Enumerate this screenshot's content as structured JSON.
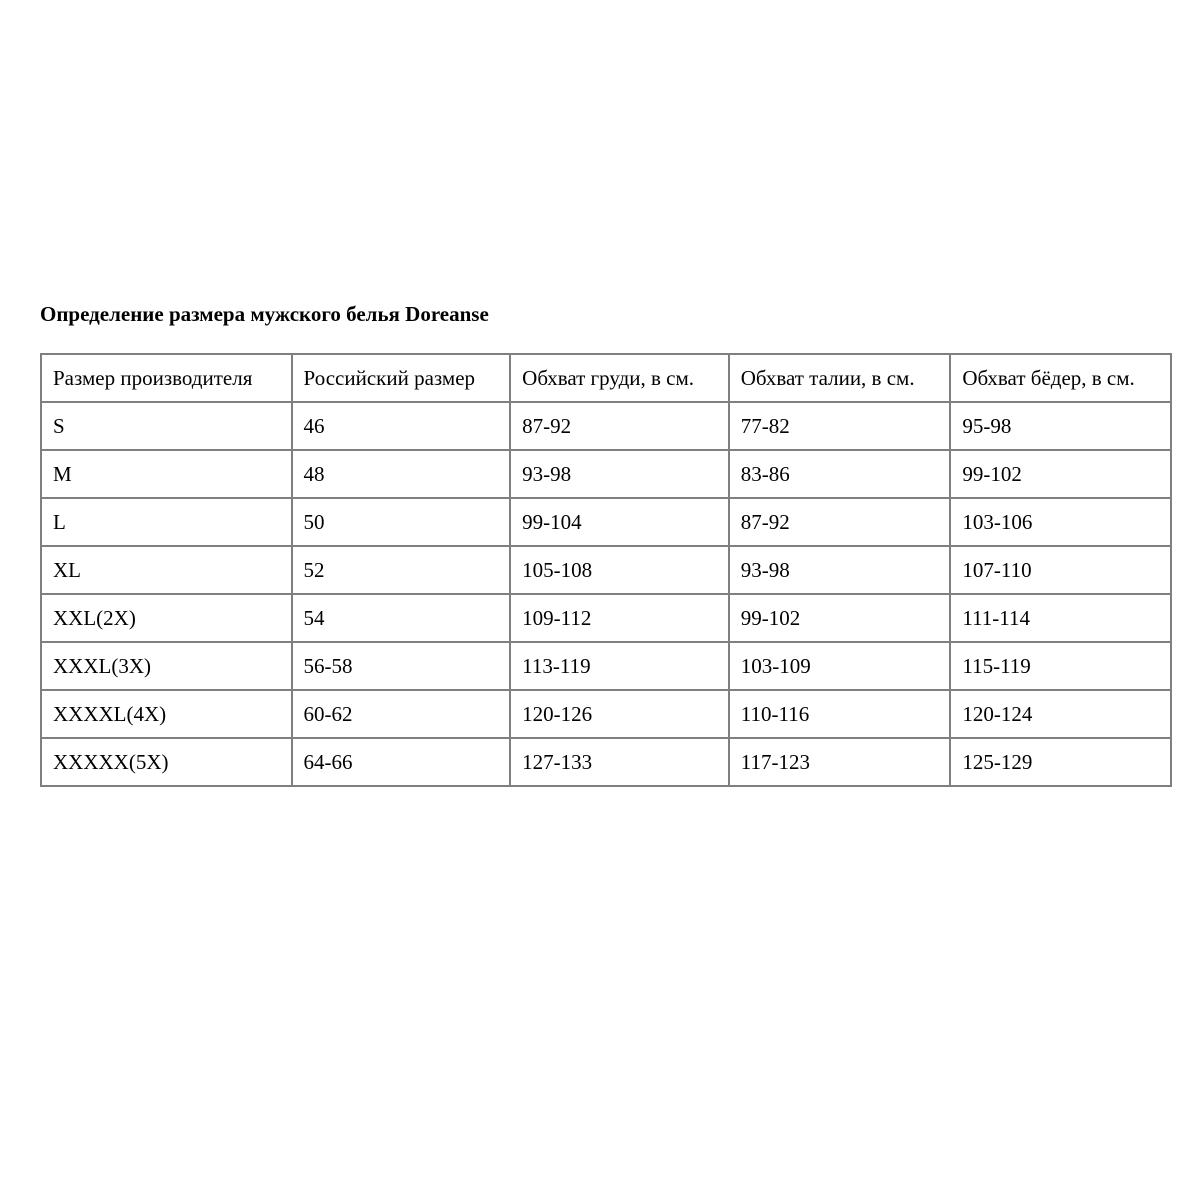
{
  "title": "Определение размера мужского белья Doreanse",
  "table": {
    "headers": [
      "Размер производителя",
      "Российский размер",
      "Обхват груди, в см.",
      "Обхват талии, в см.",
      "Обхват бёдер, в см."
    ],
    "rows": [
      [
        "S",
        "46",
        "87-92",
        "77-82",
        "95-98"
      ],
      [
        "M",
        "48",
        "93-98",
        "83-86",
        "99-102"
      ],
      [
        "L",
        "50",
        "99-104",
        "87-92",
        "103-106"
      ],
      [
        "XL",
        "52",
        "105-108",
        "93-98",
        "107-110"
      ],
      [
        "XXL(2X)",
        "54",
        "109-112",
        "99-102",
        "111-114"
      ],
      [
        "XXXL(3X)",
        "56-58",
        "113-119",
        "103-109",
        "115-119"
      ],
      [
        "XXXXL(4X)",
        "60-62",
        "120-126",
        "110-116",
        "120-124"
      ],
      [
        "XXXXX(5X)",
        "64-66",
        "127-133",
        "117-123",
        "125-129"
      ]
    ]
  },
  "colors": {
    "border": "#7f7f7f",
    "text": "#000000"
  }
}
